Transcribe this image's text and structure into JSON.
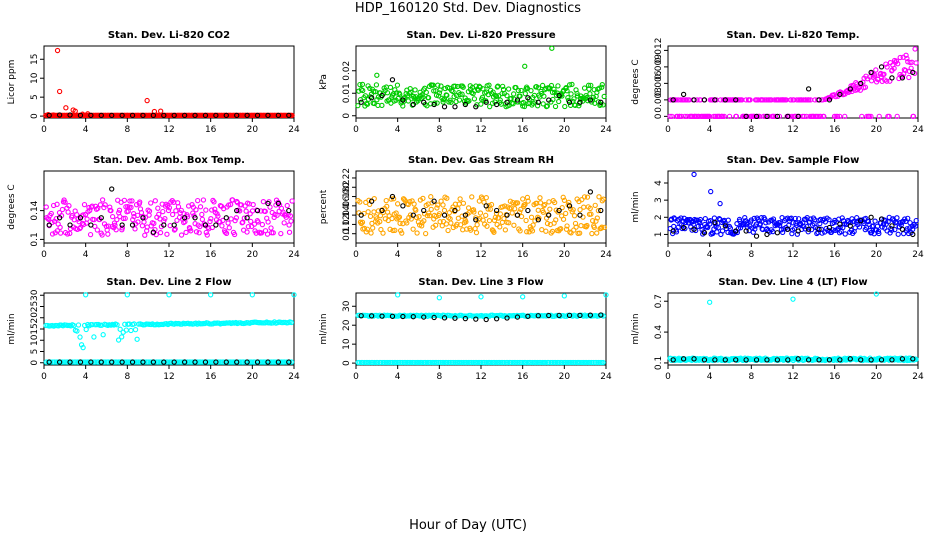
{
  "figure": {
    "title": "HDP_160120  Std. Dev. Diagnostics",
    "xlabel": "Hour of Day (UTC)"
  },
  "chart_data": [
    {
      "type": "scatter",
      "title": "Stan. Dev. Li-820 CO2",
      "ylabel": "Licor ppm",
      "xlim": [
        0,
        24
      ],
      "ylim": [
        -0.5,
        18.5
      ],
      "xticks": [
        0,
        4,
        8,
        12,
        16,
        20,
        24
      ],
      "yticks": [
        0,
        5,
        10,
        15
      ],
      "color": "#ff0000",
      "series": [
        {
          "name": "raw",
          "color": "#ff0000",
          "x": [
            1.3,
            1.5,
            2.1,
            2.8,
            3.0,
            3.7,
            4.2,
            9.9,
            10.6,
            11.2,
            0.4,
            0.9
          ],
          "y": [
            17.3,
            6.5,
            2.2,
            1.6,
            1.3,
            0.5,
            0.6,
            4.1,
            1.2,
            1.3,
            0.4,
            0.3
          ],
          "baseline": 0.2
        },
        {
          "name": "hourly",
          "color": "#000000",
          "x": [
            0.5,
            1.5,
            2.5,
            3.5,
            4.5,
            5.5,
            6.5,
            7.5,
            8.5,
            9.5,
            10.5,
            11.5,
            12.5,
            13.5,
            14.5,
            15.5,
            16.5,
            17.5,
            18.5,
            19.5,
            20.5,
            21.5,
            22.5,
            23.5
          ],
          "y": [
            0.2,
            0.3,
            0.3,
            0.2,
            0.2,
            0.2,
            0.2,
            0.2,
            0.2,
            0.2,
            0.2,
            0.2,
            0.2,
            0.2,
            0.2,
            0.2,
            0.2,
            0.2,
            0.2,
            0.2,
            0.2,
            0.2,
            0.2,
            0.2
          ]
        }
      ]
    },
    {
      "type": "scatter",
      "title": "Stan. Dev. Li-820 Pressure",
      "ylabel": "kPa",
      "xlim": [
        0,
        24
      ],
      "ylim": [
        -0.001,
        0.031
      ],
      "xticks": [
        0,
        4,
        8,
        12,
        16,
        20,
        24
      ],
      "yticks": [
        0.0,
        0.01,
        0.02
      ],
      "color": "#00cc00",
      "series": [
        {
          "name": "raw",
          "color": "#00cc00",
          "base": 0.009,
          "spread": 0.005,
          "outliers_x": [
            18.8,
            16.2,
            2.0
          ],
          "outliers_y": [
            0.03,
            0.022,
            0.018
          ]
        },
        {
          "name": "hourly",
          "color": "#000000",
          "x": [
            0.5,
            1.5,
            2.5,
            3.5,
            4.5,
            5.5,
            6.5,
            7.5,
            8.5,
            9.5,
            10.5,
            11.5,
            12.5,
            13.5,
            14.5,
            15.5,
            16.5,
            17.5,
            18.5,
            19.5,
            20.5,
            21.5,
            22.5,
            23.5
          ],
          "y": [
            0.006,
            0.008,
            0.009,
            0.016,
            0.007,
            0.005,
            0.006,
            0.005,
            0.004,
            0.004,
            0.005,
            0.004,
            0.006,
            0.005,
            0.006,
            0.007,
            0.008,
            0.006,
            0.007,
            0.009,
            0.006,
            0.006,
            0.007,
            0.006
          ]
        }
      ]
    },
    {
      "type": "scatter",
      "title": "Stan. Dev. Li-820 Temp.",
      "ylabel": "degrees C",
      "xlim": [
        0,
        24
      ],
      "ylim": [
        -0.0003,
        0.0128
      ],
      "xticks": [
        0,
        4,
        8,
        12,
        16,
        20,
        24
      ],
      "yticks": [
        0.0,
        0.003,
        0.006,
        0.009,
        0.012
      ],
      "color": "#ff00ff",
      "series": [
        {
          "name": "raw",
          "color": "#ff00ff",
          "levels": [
            0.0,
            0.003
          ],
          "rise_start": 15,
          "rise_end": 24,
          "rise_top": 0.012
        },
        {
          "name": "hourly",
          "color": "#000000",
          "x": [
            0.5,
            1.5,
            2.5,
            3.5,
            4.5,
            5.5,
            6.5,
            7.5,
            8.5,
            9.5,
            10.5,
            11.5,
            12.5,
            13.5,
            14.5,
            15.5,
            16.5,
            17.5,
            18.5,
            19.5,
            20.5,
            21.5,
            22.5,
            23.5
          ],
          "y": [
            0.003,
            0.004,
            0.003,
            0.003,
            0.003,
            0.003,
            0.003,
            0.0,
            0.0,
            0.0,
            0.0,
            0.0,
            0.0,
            0.005,
            0.003,
            0.003,
            0.004,
            0.005,
            0.006,
            0.008,
            0.009,
            0.007,
            0.007,
            0.008
          ]
        }
      ]
    },
    {
      "type": "scatter",
      "title": "Stan. Dev. Amb. Box Temp.",
      "ylabel": "degrees C",
      "xlim": [
        0,
        24
      ],
      "ylim": [
        0.095,
        0.195
      ],
      "xticks": [
        0,
        4,
        8,
        12,
        16,
        20,
        24
      ],
      "yticks": [
        0.1,
        0.14
      ],
      "color": "#ff00ff",
      "series": [
        {
          "name": "raw",
          "color": "#ff00ff",
          "base": 0.13,
          "spread": 0.025
        },
        {
          "name": "hourly",
          "color": "#000000",
          "x": [
            0.5,
            1.5,
            2.5,
            3.5,
            4.5,
            5.5,
            6.5,
            7.5,
            8.5,
            9.5,
            10.5,
            11.5,
            12.5,
            13.5,
            14.5,
            15.5,
            16.5,
            17.5,
            18.5,
            19.5,
            20.5,
            21.5,
            22.5,
            23.5
          ],
          "y": [
            0.12,
            0.13,
            0.12,
            0.13,
            0.12,
            0.13,
            0.17,
            0.12,
            0.12,
            0.13,
            0.11,
            0.12,
            0.12,
            0.13,
            0.13,
            0.12,
            0.12,
            0.13,
            0.14,
            0.13,
            0.14,
            0.15,
            0.15,
            0.14
          ]
        }
      ]
    },
    {
      "type": "scatter",
      "title": "Stan. Dev. Gas Stream RH",
      "ylabel": "percent",
      "xlim": [
        0,
        24
      ],
      "ylim": [
        0.08,
        0.235
      ],
      "xticks": [
        0,
        4,
        8,
        12,
        16,
        20,
        24
      ],
      "yticks": [
        0.1,
        0.12,
        0.14,
        0.16,
        0.18,
        0.2,
        0.22
      ],
      "color": "#ffa500",
      "series": [
        {
          "name": "raw",
          "color": "#ffa500",
          "base": 0.14,
          "spread": 0.04
        },
        {
          "name": "hourly",
          "color": "#000000",
          "x": [
            0.5,
            1.5,
            2.5,
            3.5,
            4.5,
            5.5,
            6.5,
            7.5,
            8.5,
            9.5,
            10.5,
            11.5,
            12.5,
            13.5,
            14.5,
            15.5,
            16.5,
            17.5,
            18.5,
            19.5,
            20.5,
            21.5,
            22.5,
            23.5
          ],
          "y": [
            0.14,
            0.17,
            0.15,
            0.18,
            0.16,
            0.14,
            0.15,
            0.17,
            0.14,
            0.15,
            0.14,
            0.13,
            0.16,
            0.15,
            0.14,
            0.14,
            0.15,
            0.13,
            0.14,
            0.15,
            0.16,
            0.14,
            0.19,
            0.15
          ]
        }
      ]
    },
    {
      "type": "scatter",
      "title": "Stan. Dev. Sample Flow",
      "ylabel": "ml/min",
      "xlim": [
        0,
        24
      ],
      "ylim": [
        0.5,
        4.7
      ],
      "xticks": [
        0,
        4,
        8,
        12,
        16,
        20,
        24
      ],
      "yticks": [
        1,
        2,
        3,
        4
      ],
      "color": "#0000ff",
      "series": [
        {
          "name": "raw",
          "color": "#0000ff",
          "base": 1.5,
          "spread": 0.5,
          "outliers_x": [
            2.5,
            4.1,
            5.0
          ],
          "outliers_y": [
            4.5,
            3.5,
            2.8
          ]
        },
        {
          "name": "hourly",
          "color": "#000000",
          "x": [
            0.5,
            1.5,
            2.5,
            3.5,
            4.5,
            5.5,
            6.5,
            7.5,
            8.5,
            9.5,
            10.5,
            11.5,
            12.5,
            13.5,
            14.5,
            15.5,
            16.5,
            17.5,
            18.5,
            19.5,
            20.5,
            21.5,
            22.5,
            23.5
          ],
          "y": [
            1.2,
            1.4,
            1.3,
            1.1,
            1.7,
            1.5,
            1.2,
            1.2,
            0.9,
            1.0,
            1.1,
            1.3,
            1.2,
            1.3,
            1.3,
            1.4,
            1.6,
            1.5,
            1.8,
            2.0,
            1.9,
            1.5,
            1.3,
            1.0
          ]
        }
      ]
    },
    {
      "type": "scatter",
      "title": "Stan. Dev. Line 2 Flow",
      "ylabel": "ml/min",
      "xlim": [
        0,
        24
      ],
      "ylim": [
        -1,
        31
      ],
      "xticks": [
        0,
        4,
        8,
        12,
        16,
        20,
        24
      ],
      "yticks": [
        0,
        5,
        10,
        15,
        20,
        25,
        30
      ],
      "color": "#00ffff",
      "series": [
        {
          "name": "raw",
          "color": "#00ffff",
          "upper_start": 16.5,
          "upper_end": 18,
          "lower": 0.3,
          "outliers_x": [
            4.0,
            8.0,
            12.0,
            16.0,
            20.0,
            24.0
          ],
          "outliers_y": [
            30.2,
            30.2,
            30.2,
            30.2,
            30.2,
            30.2
          ]
        },
        {
          "name": "hourly",
          "color": "#000000",
          "x": [
            0.5,
            1.5,
            2.5,
            3.5,
            4.5,
            5.5,
            6.5,
            7.5,
            8.5,
            9.5,
            10.5,
            11.5,
            12.5,
            13.5,
            14.5,
            15.5,
            16.5,
            17.5,
            18.5,
            19.5,
            20.5,
            21.5,
            22.5,
            23.5
          ],
          "y": [
            0.3,
            0.3,
            0.3,
            0.3,
            0.3,
            0.3,
            0.3,
            0.3,
            0.3,
            0.3,
            0.3,
            0.3,
            0.3,
            0.3,
            0.3,
            0.3,
            0.3,
            0.3,
            0.3,
            0.3,
            0.3,
            0.3,
            0.3,
            0.3
          ]
        }
      ]
    },
    {
      "type": "scatter",
      "title": "Stan. Dev. Line 3 Flow",
      "ylabel": "ml/min",
      "xlim": [
        0,
        24
      ],
      "ylim": [
        -1,
        37
      ],
      "xticks": [
        0,
        4,
        8,
        12,
        16,
        20,
        24
      ],
      "yticks": [
        0,
        10,
        20,
        30
      ],
      "color": "#00ffff",
      "series": [
        {
          "name": "raw",
          "color": "#00ffff",
          "upper_start": 25,
          "upper_end": 25,
          "lower": 0.3,
          "outliers_x": [
            4.0,
            8.0,
            12.0,
            16.0,
            20.0,
            24.0
          ],
          "outliers_y": [
            36,
            34.5,
            35,
            35,
            35.5,
            36
          ]
        },
        {
          "name": "hourly",
          "color": "#000000",
          "x": [
            0.5,
            1.5,
            2.5,
            3.5,
            4.5,
            5.5,
            6.5,
            7.5,
            8.5,
            9.5,
            10.5,
            11.5,
            12.5,
            13.5,
            14.5,
            15.5,
            16.5,
            17.5,
            18.5,
            19.5,
            20.5,
            21.5,
            22.5,
            23.5
          ],
          "y": [
            25,
            24.9,
            24.8,
            24.7,
            24.6,
            24.5,
            24.3,
            24.1,
            23.9,
            23.7,
            23.5,
            23.2,
            23.0,
            23.4,
            23.8,
            24.3,
            24.7,
            25.0,
            25.1,
            25.2,
            25.2,
            25.2,
            25.3,
            25.4
          ]
        }
      ]
    },
    {
      "type": "scatter",
      "title": "Stan. Dev. Line 4 (LT) Flow",
      "ylabel": "ml/min",
      "xlim": [
        0,
        24
      ],
      "ylim": [
        0.08,
        0.78
      ],
      "xticks": [
        0,
        4,
        8,
        12,
        16,
        20,
        24
      ],
      "yticks": [
        0.1,
        0.4,
        0.7
      ],
      "color": "#00ffff",
      "series": [
        {
          "name": "raw",
          "color": "#00ffff",
          "base": 0.135,
          "spread": 0.012,
          "outliers_x": [
            4.0,
            12.0,
            20.0
          ],
          "outliers_y": [
            0.69,
            0.72,
            0.77
          ]
        },
        {
          "name": "hourly",
          "color": "#000000",
          "x": [
            0.5,
            1.5,
            2.5,
            3.5,
            4.5,
            5.5,
            6.5,
            7.5,
            8.5,
            9.5,
            10.5,
            11.5,
            12.5,
            13.5,
            14.5,
            15.5,
            16.5,
            17.5,
            18.5,
            19.5,
            20.5,
            21.5,
            22.5,
            23.5
          ],
          "y": [
            0.13,
            0.14,
            0.14,
            0.13,
            0.13,
            0.13,
            0.13,
            0.13,
            0.13,
            0.13,
            0.13,
            0.13,
            0.14,
            0.13,
            0.13,
            0.13,
            0.13,
            0.14,
            0.13,
            0.13,
            0.13,
            0.13,
            0.14,
            0.14
          ]
        }
      ]
    }
  ]
}
